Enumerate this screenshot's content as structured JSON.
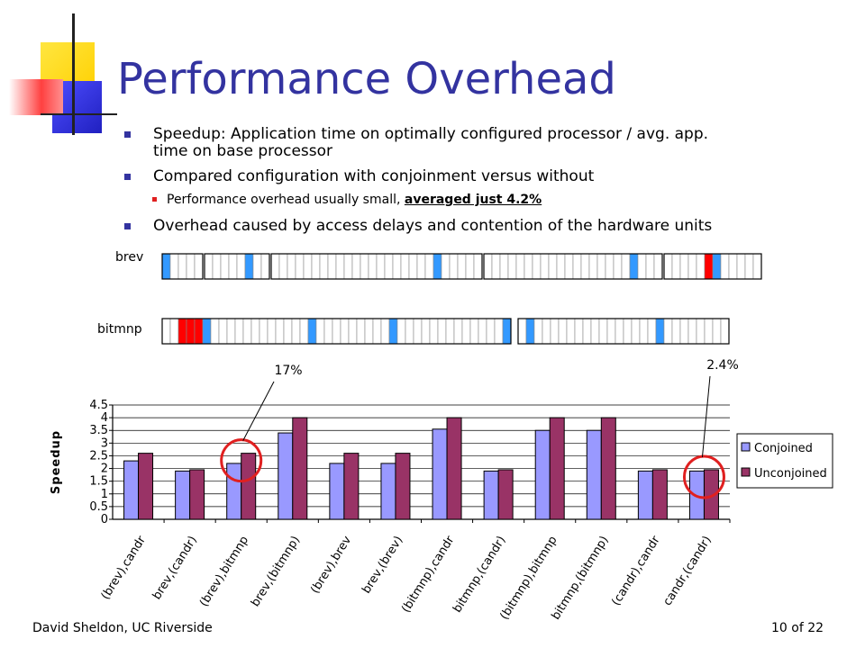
{
  "slide": {
    "title": "Performance Overhead",
    "bullets": [
      {
        "lines": [
          "Speedup: Application time on optimally configured processor / avg. app.",
          "time on base processor"
        ]
      },
      {
        "lines": [
          "Compared configuration with conjoinment versus without"
        ]
      },
      {
        "lines": [
          "Overhead caused by access delays and contention of the hardware units"
        ]
      }
    ],
    "sub_bullet": {
      "text_before": "Performance overhead usually small, ",
      "emphasis": "averaged just 4.2%"
    },
    "footer_left": "David Sheldon, UC Riverside",
    "footer_right": "10 of 22"
  },
  "timelines": [
    {
      "label": "brev",
      "start_gap": 0,
      "groups": [
        {
          "gap": 0,
          "cells": [
            "blue",
            "w",
            "w",
            "w",
            "w"
          ]
        },
        {
          "gap": 0,
          "cells": [
            "w",
            "w",
            "w",
            "w",
            "w",
            "blue",
            "w",
            "w"
          ]
        },
        {
          "gap": 0,
          "cells": [
            "w",
            "w",
            "w",
            "w",
            "w",
            "w",
            "w",
            "w",
            "w",
            "w",
            "w",
            "w",
            "w",
            "w",
            "w",
            "w",
            "w",
            "w",
            "w",
            "w",
            "blue",
            "w",
            "w",
            "w",
            "w",
            "w"
          ]
        },
        {
          "gap": 0,
          "cells": [
            "w",
            "w",
            "w",
            "w",
            "w",
            "w",
            "w",
            "w",
            "w",
            "w",
            "w",
            "w",
            "w",
            "w",
            "w",
            "w",
            "w",
            "w",
            "blue",
            "w",
            "w",
            "w"
          ]
        },
        {
          "gap": 0,
          "cells": [
            "w",
            "w",
            "w",
            "w",
            "w",
            "red",
            "blue",
            "w",
            "w",
            "w",
            "w",
            "w"
          ]
        }
      ]
    },
    {
      "label": "bitmnp",
      "groups": [
        {
          "gap": 0,
          "cells": [
            "w",
            "w",
            "red",
            "red",
            "red",
            "blue",
            "w",
            "w",
            "w",
            "w",
            "w",
            "w",
            "w",
            "w",
            "w",
            "w",
            "w",
            "w",
            "blue",
            "w",
            "w",
            "w",
            "w",
            "w",
            "w",
            "w",
            "w",
            "w",
            "blue",
            "w",
            "w",
            "w",
            "w",
            "w",
            "w",
            "w",
            "w",
            "w",
            "w",
            "w",
            "w",
            "w",
            "blue"
          ]
        },
        {
          "gap": 1,
          "cells": [
            "w",
            "blue",
            "w",
            "w",
            "w",
            "w",
            "w",
            "w",
            "w",
            "w",
            "w",
            "w",
            "w",
            "w",
            "w",
            "w",
            "w",
            "blue",
            "w",
            "w",
            "w",
            "w",
            "w",
            "w",
            "w",
            "w"
          ]
        }
      ]
    }
  ],
  "annotations": [
    {
      "text": "17%",
      "target": "(brev),bitmnp"
    },
    {
      "text": "2.4%",
      "target": "candr,(candr)"
    }
  ],
  "chart_data": {
    "type": "bar",
    "title": "",
    "xlabel": "",
    "ylabel": "Speedup",
    "ylim": [
      0,
      4.5
    ],
    "yticks": [
      "0",
      "0.5",
      "1",
      "1.5",
      "2",
      "2.5",
      "3",
      "3.5",
      "4",
      "4.5"
    ],
    "grid": true,
    "legend": "right",
    "categories": [
      "(brev),candr",
      "brev,(candr)",
      "(brev),bitmnp",
      "brev,(bitmnp)",
      "(brev),brev",
      "brev,(brev)",
      "(bitmnp),candr",
      "bitmnp,(candr)",
      "(bitmnp),bitmnp",
      "bitmnp,(bitmnp)",
      "(candr),candr",
      "candr,(candr)"
    ],
    "series": [
      {
        "name": "Conjoined",
        "color": "#9999ff",
        "values": [
          2.3,
          1.9,
          2.2,
          3.4,
          2.2,
          2.2,
          3.55,
          1.9,
          3.5,
          3.5,
          1.9,
          1.9
        ]
      },
      {
        "name": "Unconjoined",
        "color": "#993366",
        "values": [
          2.6,
          1.95,
          2.6,
          4.0,
          2.6,
          2.6,
          4.0,
          1.95,
          4.0,
          4.0,
          1.95,
          1.95
        ]
      }
    ]
  }
}
